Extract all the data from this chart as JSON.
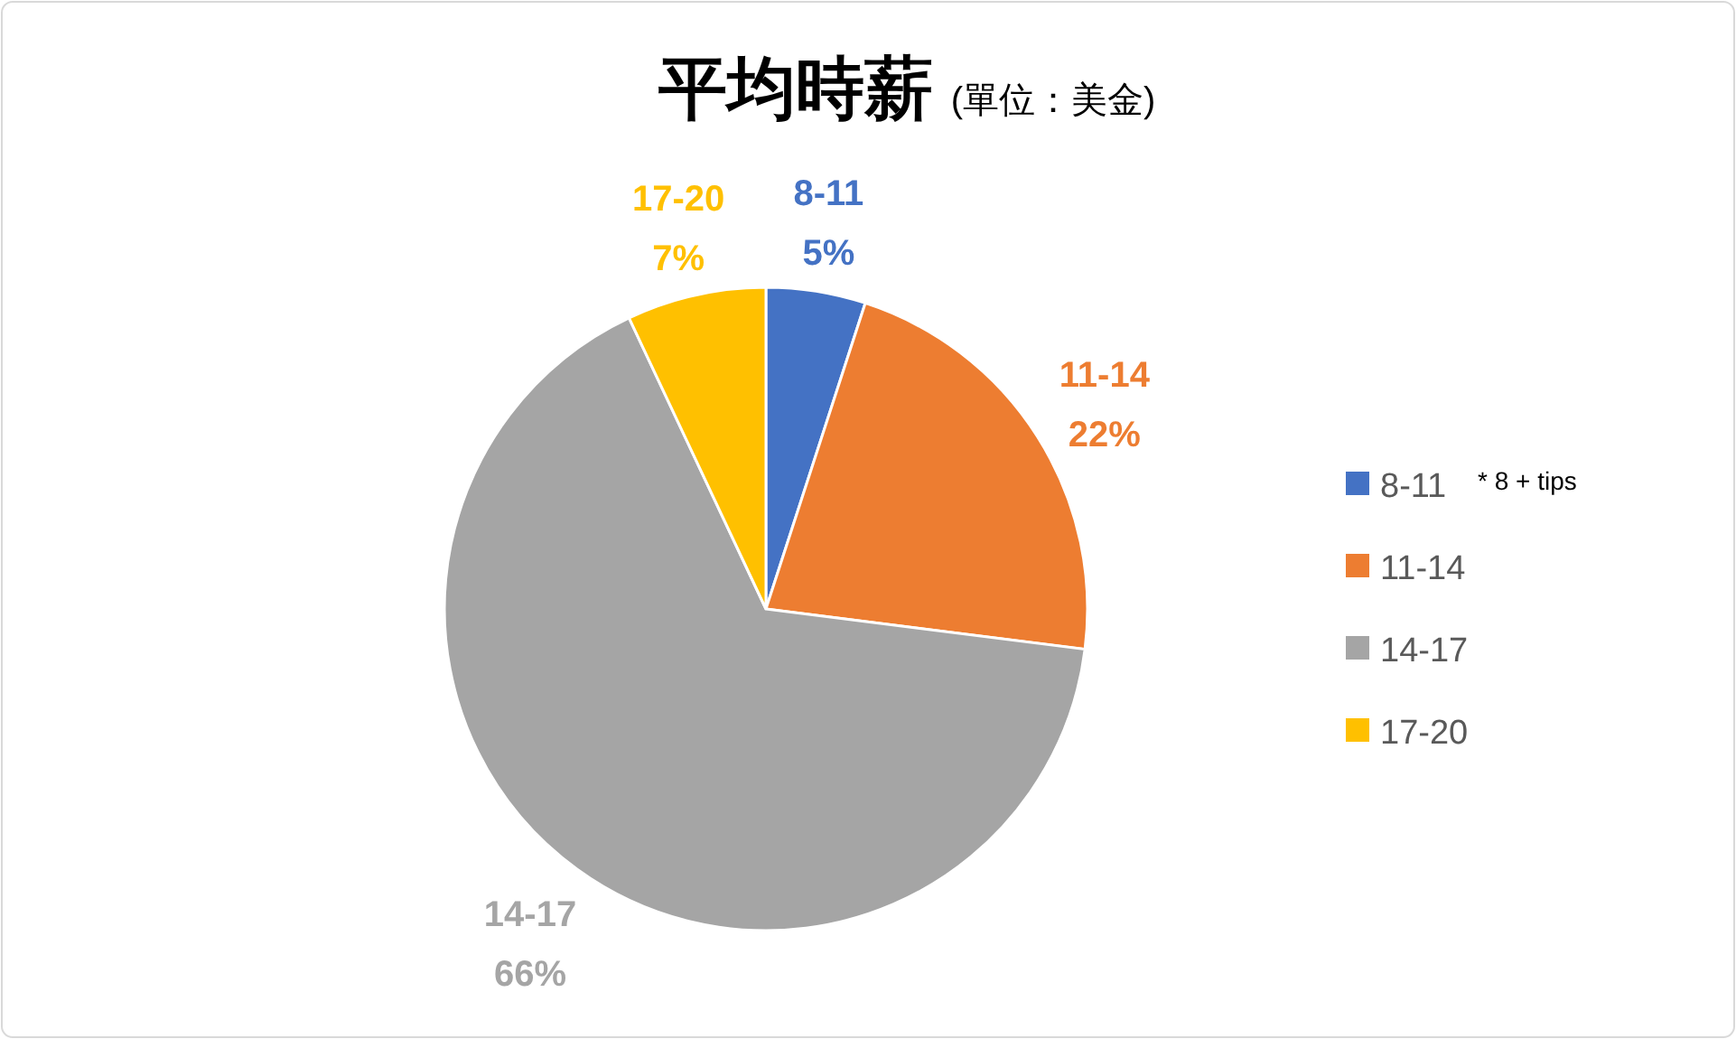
{
  "chart_data": {
    "type": "pie",
    "title": "平均時薪",
    "subtitle": "(單位：美金)",
    "categories": [
      "8-11",
      "11-14",
      "14-17",
      "17-20"
    ],
    "values": [
      5,
      22,
      66,
      7
    ],
    "colors": [
      "#4472c4",
      "#ed7d31",
      "#a5a5a5",
      "#ffc000"
    ],
    "value_labels": [
      "5%",
      "22%",
      "66%",
      "7%"
    ],
    "legend": "right",
    "annotations": [
      "* 8 + tips"
    ]
  }
}
